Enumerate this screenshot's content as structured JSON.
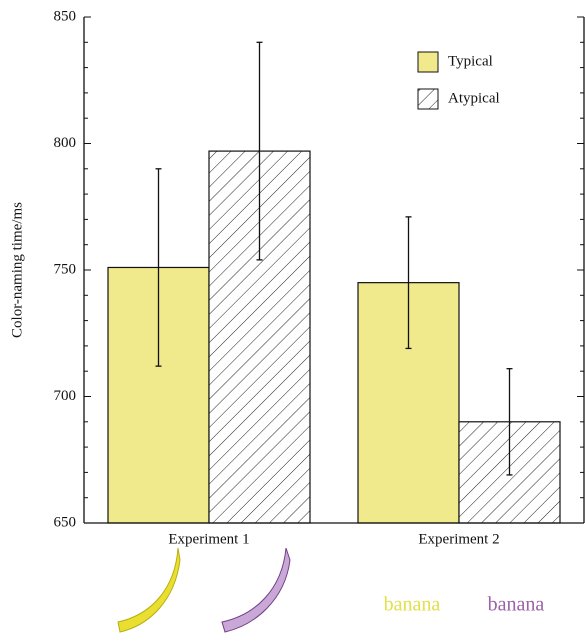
{
  "chart_data": {
    "type": "bar",
    "y_label": "Color-naming time/ms",
    "categories": [
      "Experiment 1",
      "Experiment 2"
    ],
    "series": [
      {
        "name": "Typical",
        "color": "#f0ea8c",
        "values": [
          751,
          745
        ],
        "errors": [
          39,
          26
        ]
      },
      {
        "name": "Atypical",
        "color": "hatch",
        "values": [
          797,
          690
        ],
        "errors": [
          43,
          21
        ]
      }
    ],
    "ylim": [
      650,
      850
    ],
    "yticks": [
      650,
      700,
      750,
      800,
      850
    ],
    "minor_yticks": [
      660,
      670,
      680,
      690,
      710,
      720,
      730,
      740,
      760,
      770,
      780,
      790,
      810,
      820,
      830,
      840
    ],
    "legend": "upper right",
    "stimulus_words": [
      {
        "text": "banana",
        "color": "#e3e04a"
      },
      {
        "text": "banana",
        "color": "#9b62a8"
      }
    ]
  }
}
